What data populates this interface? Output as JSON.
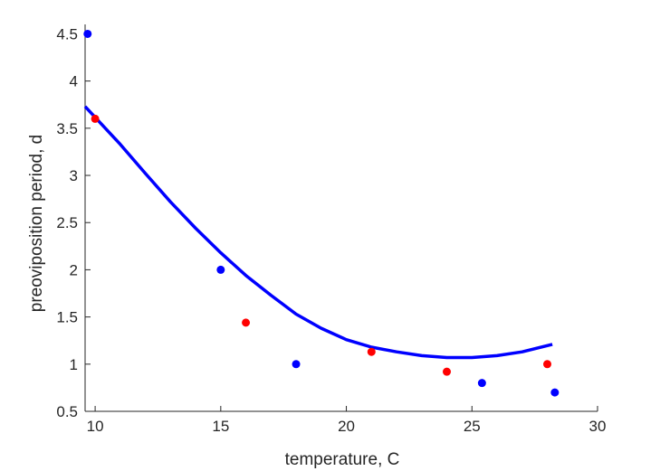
{
  "chart_data": {
    "type": "scatter",
    "xlabel": "temperature, C",
    "ylabel": "preoviposition period, d",
    "xlim": [
      9.6,
      30
    ],
    "ylim": [
      0.5,
      4.6
    ],
    "x_ticks": [
      10,
      15,
      20,
      25,
      30
    ],
    "y_ticks": [
      0.5,
      1,
      1.5,
      2,
      2.5,
      3,
      3.5,
      4,
      4.5
    ],
    "x_tick_labels": [
      "10",
      "15",
      "20",
      "25",
      "30"
    ],
    "y_tick_labels": [
      "0.5",
      "1",
      "1.5",
      "2",
      "2.5",
      "3",
      "3.5",
      "4",
      "4.5"
    ],
    "grid": false,
    "box": false,
    "series": [
      {
        "kind": "points",
        "color": "#ff0000",
        "points": [
          {
            "x": 10,
            "y": 3.6
          },
          {
            "x": 16,
            "y": 1.44
          },
          {
            "x": 21,
            "y": 1.13
          },
          {
            "x": 24,
            "y": 0.92
          },
          {
            "x": 28,
            "y": 1.0
          }
        ]
      },
      {
        "kind": "points",
        "color": "#0000ff",
        "points": [
          {
            "x": 9.7,
            "y": 4.5
          },
          {
            "x": 15,
            "y": 2.0
          },
          {
            "x": 18,
            "y": 1.0
          },
          {
            "x": 25.4,
            "y": 0.8
          },
          {
            "x": 28.3,
            "y": 0.7
          }
        ]
      },
      {
        "kind": "curve",
        "color": "#0000ff",
        "points": [
          {
            "x": 9.6,
            "y": 3.73
          },
          {
            "x": 11,
            "y": 3.33
          },
          {
            "x": 12,
            "y": 3.02
          },
          {
            "x": 13,
            "y": 2.72
          },
          {
            "x": 14,
            "y": 2.44
          },
          {
            "x": 15,
            "y": 2.18
          },
          {
            "x": 16,
            "y": 1.94
          },
          {
            "x": 17,
            "y": 1.73
          },
          {
            "x": 18,
            "y": 1.53
          },
          {
            "x": 19,
            "y": 1.38
          },
          {
            "x": 20,
            "y": 1.26
          },
          {
            "x": 21,
            "y": 1.18
          },
          {
            "x": 22,
            "y": 1.13
          },
          {
            "x": 23,
            "y": 1.09
          },
          {
            "x": 24,
            "y": 1.07
          },
          {
            "x": 25,
            "y": 1.07
          },
          {
            "x": 26,
            "y": 1.09
          },
          {
            "x": 27,
            "y": 1.13
          },
          {
            "x": 28.2,
            "y": 1.21
          }
        ]
      }
    ]
  }
}
